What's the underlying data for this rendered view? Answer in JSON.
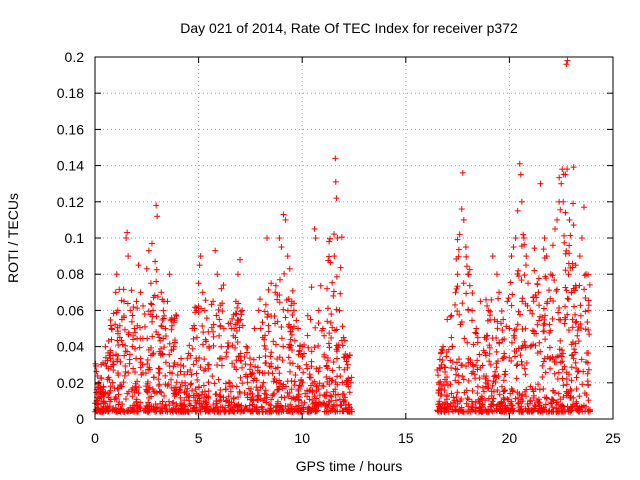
{
  "chart_data": {
    "type": "scatter",
    "title": "Day 021 of 2014, Rate Of TEC Index for receiver p372",
    "xlabel": "GPS time / hours",
    "ylabel": "ROTI / TECUs",
    "xlim": [
      0,
      25
    ],
    "ylim": [
      0,
      0.2
    ],
    "x_ticks": [
      0,
      5,
      10,
      15,
      20,
      25
    ],
    "x_tick_labels": [
      "0",
      "5",
      "10",
      "15",
      "20",
      "25"
    ],
    "y_ticks": [
      0,
      0.02,
      0.04,
      0.06,
      0.08,
      0.1,
      0.12,
      0.14,
      0.16,
      0.18,
      0.2
    ],
    "y_tick_labels": [
      "0",
      "0.02",
      "0.04",
      "0.06",
      "0.08",
      "0.1",
      "0.12",
      "0.14",
      "0.16",
      "0.18",
      "0.2"
    ],
    "grid": true,
    "marker": "+",
    "color": "#ff0000",
    "data_gap_hours": [
      12.4,
      16.5
    ],
    "series": [
      {
        "name": "ROTI",
        "points": [
          [
            0.1,
            0.012
          ],
          [
            0.2,
            0.02
          ],
          [
            0.3,
            0.03
          ],
          [
            0.4,
            0.015
          ],
          [
            0.5,
            0.04
          ],
          [
            0.6,
            0.022
          ],
          [
            0.7,
            0.035
          ],
          [
            0.8,
            0.05
          ],
          [
            0.9,
            0.03
          ],
          [
            1.0,
            0.07
          ],
          [
            1.05,
            0.08
          ],
          [
            1.1,
            0.06
          ],
          [
            1.2,
            0.045
          ],
          [
            1.3,
            0.055
          ],
          [
            1.4,
            0.065
          ],
          [
            1.5,
            0.1
          ],
          [
            1.55,
            0.103
          ],
          [
            1.6,
            0.09
          ],
          [
            1.7,
            0.06
          ],
          [
            1.8,
            0.04
          ],
          [
            1.9,
            0.05
          ],
          [
            2.0,
            0.065
          ],
          [
            2.1,
            0.085
          ],
          [
            2.2,
            0.07
          ],
          [
            2.3,
            0.03
          ],
          [
            2.4,
            0.058
          ],
          [
            2.5,
            0.083
          ],
          [
            2.6,
            0.093
          ],
          [
            2.7,
            0.075
          ],
          [
            2.75,
            0.097
          ],
          [
            2.8,
            0.06
          ],
          [
            2.9,
            0.087
          ],
          [
            2.95,
            0.118
          ],
          [
            3.0,
            0.112
          ],
          [
            3.1,
            0.045
          ],
          [
            3.2,
            0.07
          ],
          [
            3.3,
            0.06
          ],
          [
            3.4,
            0.05
          ],
          [
            3.5,
            0.065
          ],
          [
            3.6,
            0.08
          ],
          [
            3.7,
            0.055
          ],
          [
            3.8,
            0.04
          ],
          [
            4.0,
            0.03
          ],
          [
            4.2,
            0.02
          ],
          [
            4.4,
            0.015
          ],
          [
            4.6,
            0.035
          ],
          [
            4.8,
            0.05
          ],
          [
            4.9,
            0.06
          ],
          [
            5.0,
            0.075
          ],
          [
            5.05,
            0.085
          ],
          [
            5.1,
            0.09
          ],
          [
            5.2,
            0.07
          ],
          [
            5.3,
            0.06
          ],
          [
            5.5,
            0.03
          ],
          [
            5.7,
            0.065
          ],
          [
            5.8,
            0.093
          ],
          [
            5.9,
            0.08
          ],
          [
            6.0,
            0.055
          ],
          [
            6.1,
            0.072
          ],
          [
            6.2,
            0.074
          ],
          [
            6.4,
            0.04
          ],
          [
            6.6,
            0.05
          ],
          [
            6.8,
            0.065
          ],
          [
            6.9,
            0.08
          ],
          [
            7.0,
            0.088
          ],
          [
            7.1,
            0.06
          ],
          [
            7.3,
            0.04
          ],
          [
            7.5,
            0.03
          ],
          [
            7.7,
            0.05
          ],
          [
            7.9,
            0.06
          ],
          [
            8.0,
            0.05
          ],
          [
            8.1,
            0.045
          ],
          [
            8.3,
            0.1
          ],
          [
            8.5,
            0.075
          ],
          [
            8.7,
            0.07
          ],
          [
            8.9,
            0.1
          ],
          [
            9.0,
            0.095
          ],
          [
            9.1,
            0.113
          ],
          [
            9.2,
            0.11
          ],
          [
            9.3,
            0.09
          ],
          [
            9.4,
            0.083
          ],
          [
            9.5,
            0.065
          ],
          [
            9.6,
            0.06
          ],
          [
            9.8,
            0.05
          ],
          [
            10.0,
            0.04
          ],
          [
            10.2,
            0.03
          ],
          [
            10.4,
            0.055
          ],
          [
            10.6,
            0.105
          ],
          [
            10.65,
            0.1
          ],
          [
            10.8,
            0.06
          ],
          [
            11.0,
            0.05
          ],
          [
            11.2,
            0.072
          ],
          [
            11.4,
            0.058
          ],
          [
            11.5,
            0.068
          ],
          [
            11.55,
            0.09
          ],
          [
            11.6,
            0.144
          ],
          [
            11.62,
            0.131
          ],
          [
            11.65,
            0.122
          ],
          [
            11.7,
            0.1
          ],
          [
            11.8,
            0.06
          ],
          [
            12.0,
            0.045
          ],
          [
            12.2,
            0.03
          ],
          [
            12.35,
            0.02
          ],
          [
            16.6,
            0.02
          ],
          [
            16.8,
            0.04
          ],
          [
            17.0,
            0.055
          ],
          [
            17.2,
            0.045
          ],
          [
            17.4,
            0.07
          ],
          [
            17.5,
            0.08
          ],
          [
            17.6,
            0.102
          ],
          [
            17.7,
            0.116
          ],
          [
            17.75,
            0.136
          ],
          [
            17.8,
            0.11
          ],
          [
            17.9,
            0.095
          ],
          [
            18.0,
            0.08
          ],
          [
            18.2,
            0.06
          ],
          [
            18.4,
            0.05
          ],
          [
            18.6,
            0.065
          ],
          [
            18.8,
            0.045
          ],
          [
            19.0,
            0.06
          ],
          [
            19.2,
            0.09
          ],
          [
            19.4,
            0.08
          ],
          [
            19.5,
            0.07
          ],
          [
            19.7,
            0.055
          ],
          [
            19.9,
            0.065
          ],
          [
            20.0,
            0.05
          ],
          [
            20.1,
            0.09
          ],
          [
            20.2,
            0.095
          ],
          [
            20.3,
            0.1
          ],
          [
            20.4,
            0.115
          ],
          [
            20.5,
            0.141
          ],
          [
            20.55,
            0.135
          ],
          [
            20.6,
            0.12
          ],
          [
            20.7,
            0.1
          ],
          [
            20.8,
            0.085
          ],
          [
            20.9,
            0.075
          ],
          [
            21.0,
            0.06
          ],
          [
            21.2,
            0.082
          ],
          [
            21.4,
            0.07
          ],
          [
            21.5,
            0.13
          ],
          [
            21.7,
            0.1
          ],
          [
            21.8,
            0.09
          ],
          [
            22.0,
            0.08
          ],
          [
            22.1,
            0.096
          ],
          [
            22.2,
            0.105
          ],
          [
            22.3,
            0.11
          ],
          [
            22.4,
            0.12
          ],
          [
            22.5,
            0.13
          ],
          [
            22.55,
            0.138
          ],
          [
            22.6,
            0.12
          ],
          [
            22.7,
            0.135
          ],
          [
            22.75,
            0.196
          ],
          [
            22.8,
            0.198
          ],
          [
            22.9,
            0.11
          ],
          [
            23.0,
            0.07
          ],
          [
            23.2,
            0.085
          ],
          [
            23.4,
            0.09
          ],
          [
            23.5,
            0.1
          ],
          [
            23.6,
            0.117
          ],
          [
            23.7,
            0.08
          ],
          [
            23.8,
            0.06
          ]
        ]
      }
    ]
  }
}
